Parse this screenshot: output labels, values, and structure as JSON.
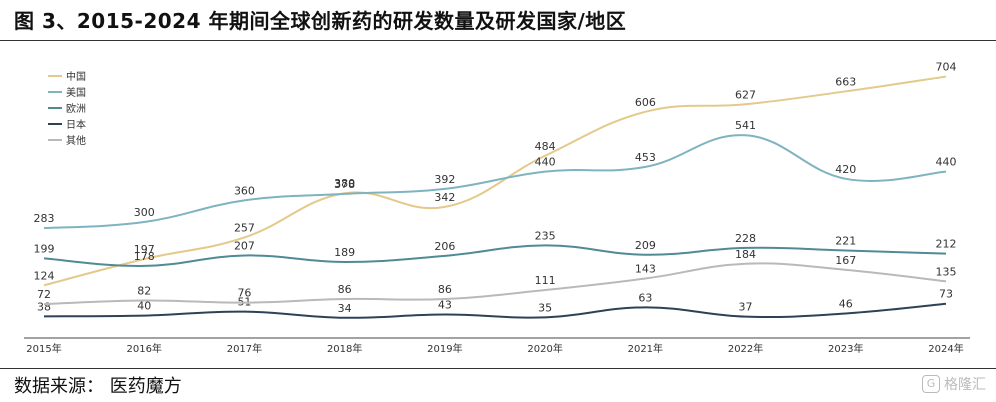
{
  "figure": {
    "title": "图 3、2015-2024 年期间全球创新药的研发数量及研发国家/地区",
    "source": "数据来源：  医药魔方",
    "watermark": "格隆汇"
  },
  "chart_data": {
    "type": "line",
    "categories": [
      "2015年",
      "2016年",
      "2017年",
      "2018年",
      "2019年",
      "2020年",
      "2021年",
      "2022年",
      "2023年",
      "2024年"
    ],
    "ylim": [
      0,
      750
    ],
    "grid": false,
    "legend_position": "top-left",
    "series": [
      {
        "name": "中国",
        "color": "#e4c98a",
        "values": [
          124,
          197,
          257,
          380,
          342,
          484,
          606,
          627,
          663,
          704
        ]
      },
      {
        "name": "美国",
        "color": "#7fb3c0",
        "values": [
          283,
          300,
          360,
          378,
          392,
          440,
          453,
          541,
          420,
          440
        ]
      },
      {
        "name": "欧洲",
        "color": "#4f8a95",
        "values": [
          199,
          178,
          207,
          189,
          206,
          235,
          209,
          228,
          221,
          212
        ]
      },
      {
        "name": "日本",
        "color": "#2d4256",
        "values": [
          38,
          40,
          51,
          34,
          43,
          35,
          63,
          37,
          46,
          73
        ]
      },
      {
        "name": "其他",
        "color": "#b9b9b9",
        "values": [
          72,
          82,
          76,
          86,
          86,
          111,
          143,
          184,
          167,
          135
        ]
      }
    ]
  }
}
